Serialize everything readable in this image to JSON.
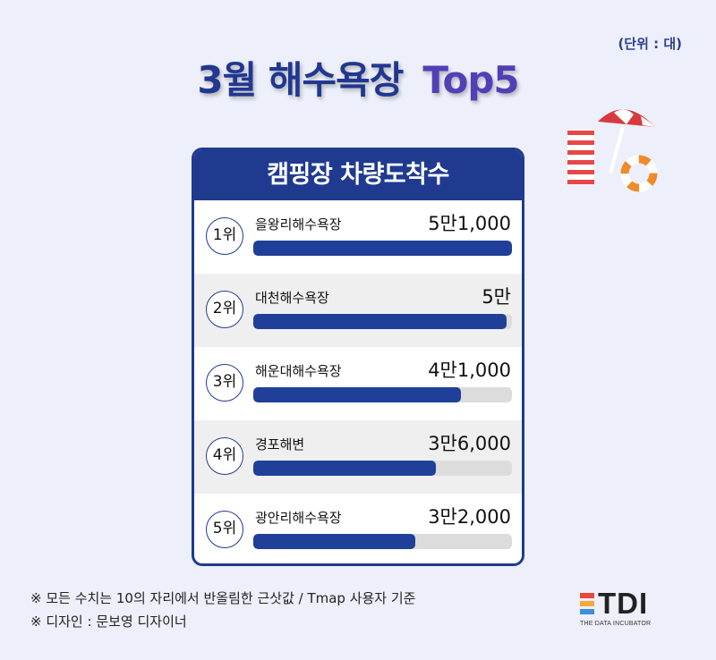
{
  "unit_label": "(단위 : 대)",
  "title_part1": "3월 해수욕장",
  "title_part2": "Top5",
  "colors": {
    "primary": "#1f3a8f",
    "accent": "#5140b5",
    "track": "#dcdcdc",
    "row_alt": "#efefef"
  },
  "chart_data": {
    "type": "bar",
    "title": "캠핑장 차량도착수",
    "orientation": "horizontal",
    "max": 51000,
    "items": [
      {
        "rank": "1위",
        "name": "을왕리해수욕장",
        "value": 51000,
        "label": "5만1,000"
      },
      {
        "rank": "2위",
        "name": "대천해수욕장",
        "value": 50000,
        "label": "5만"
      },
      {
        "rank": "3위",
        "name": "해운대해수욕장",
        "value": 41000,
        "label": "4만1,000"
      },
      {
        "rank": "4위",
        "name": "경포해변",
        "value": 36000,
        "label": "3만6,000"
      },
      {
        "rank": "5위",
        "name": "광안리해수욕장",
        "value": 32000,
        "label": "3만2,000"
      }
    ]
  },
  "notes": [
    "※ 모든 수치는 10의 자리에서 반올림한 근삿값 / Tmap 사용자 기준",
    "※ 디자인 : 문보영 디자이너"
  ],
  "logo": {
    "word": "TDI",
    "sub": "THE DATA INCUBATOR",
    "bar_colors": [
      "#e8473b",
      "#f4a93b",
      "#3e8ed8"
    ]
  },
  "decoration_icons": [
    "beach-umbrella-icon",
    "beach-towel-icon",
    "lifebuoy-icon"
  ]
}
